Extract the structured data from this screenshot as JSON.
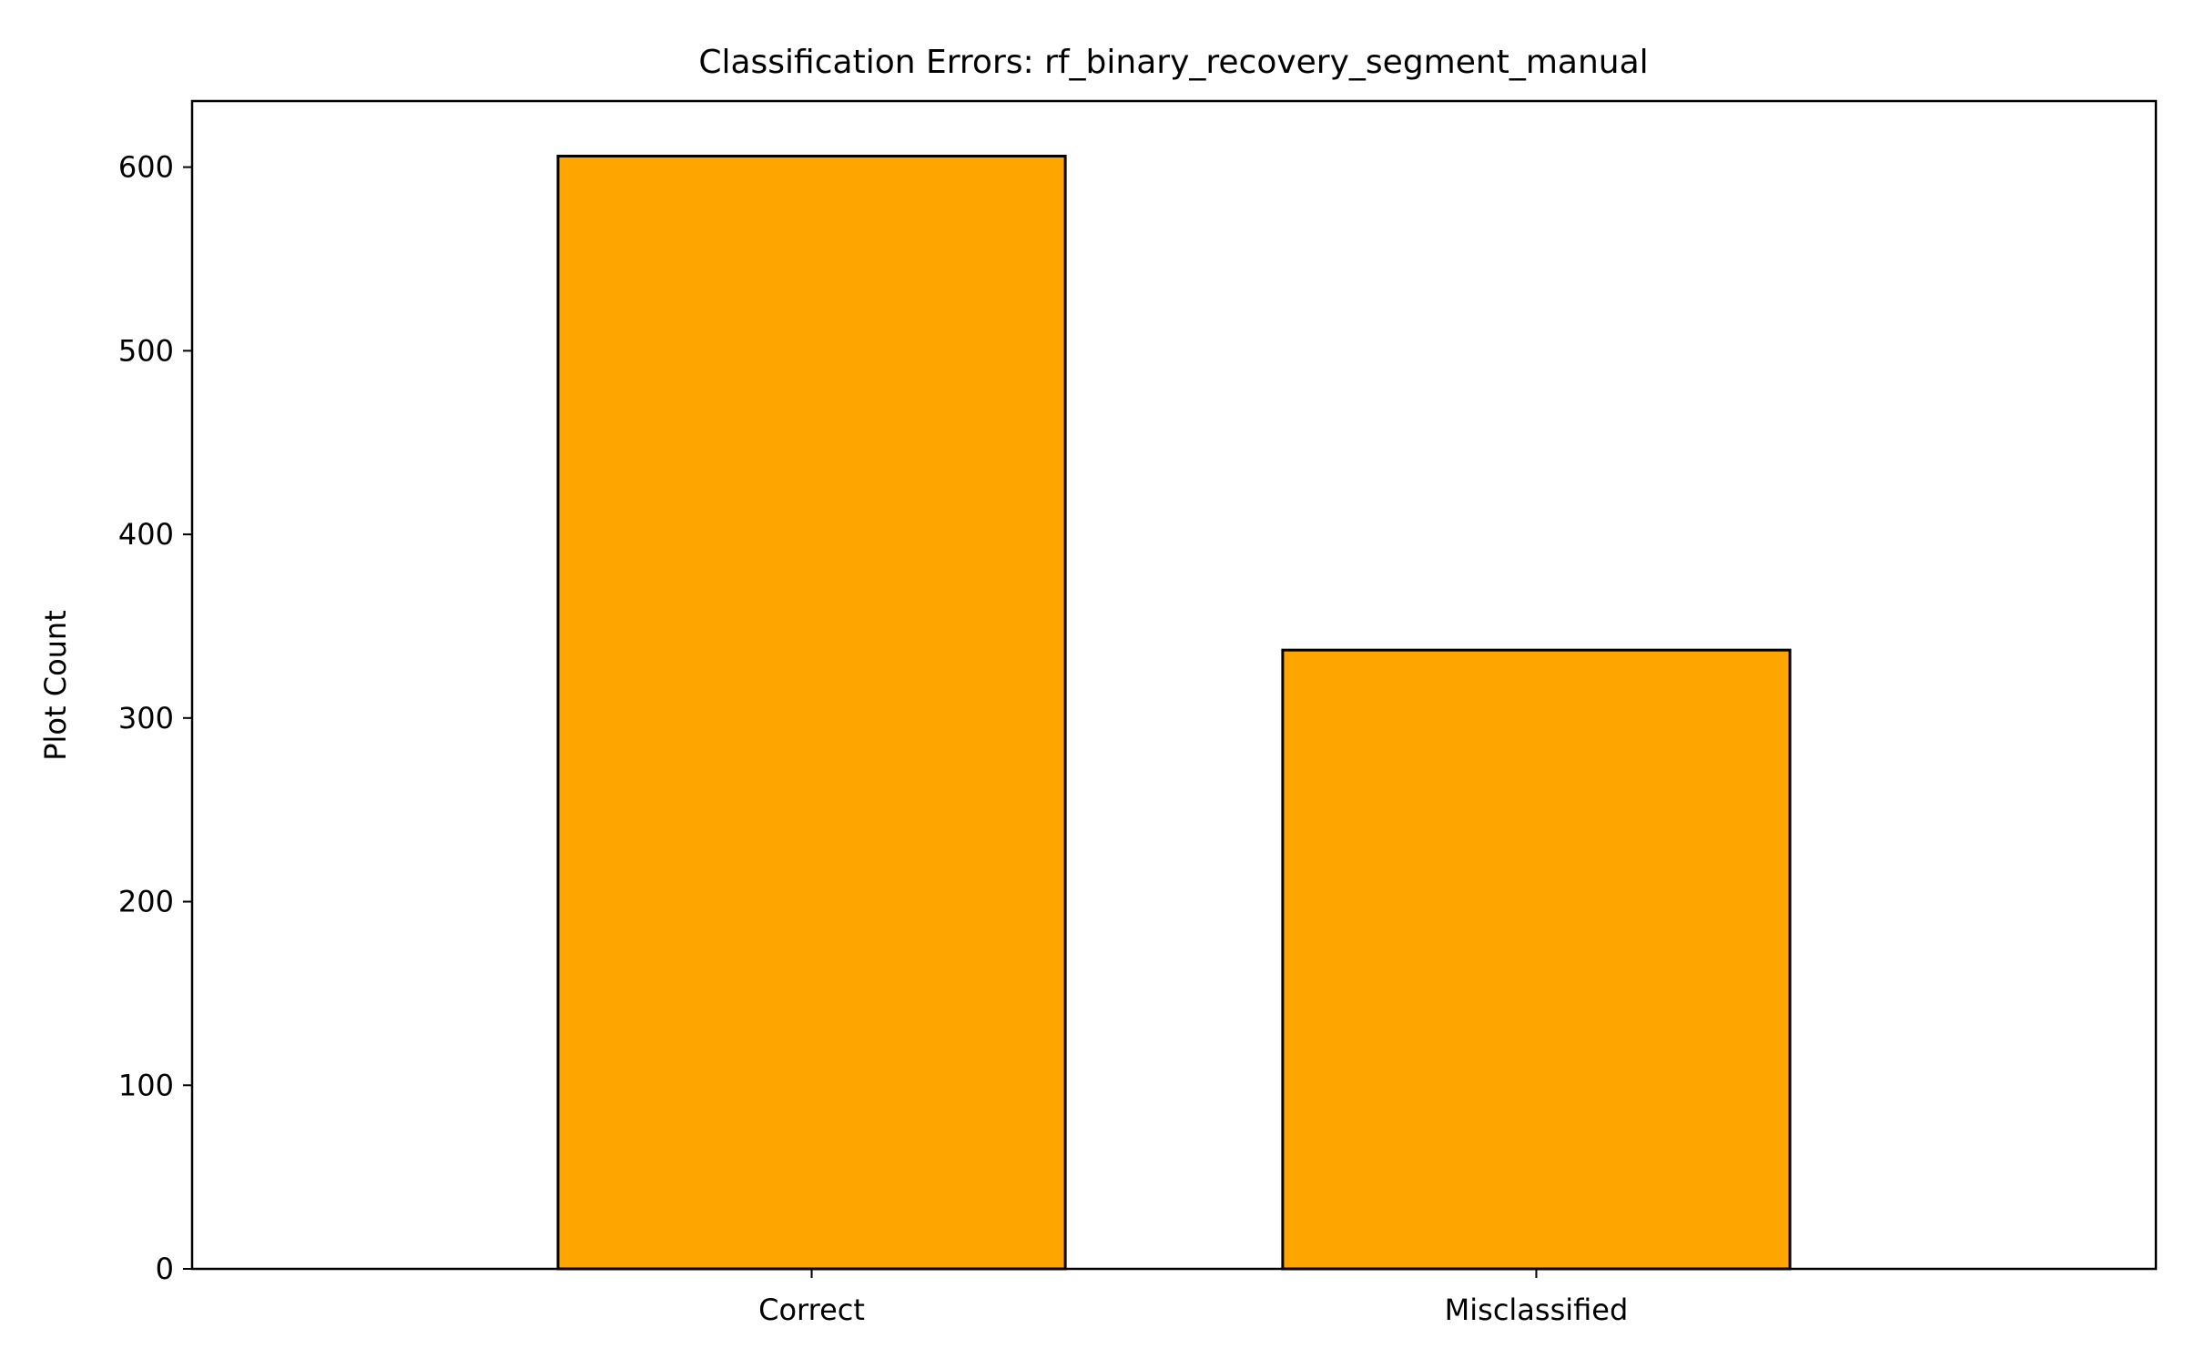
{
  "chart_data": {
    "type": "bar",
    "title": "Classification Errors: rf_binary_recovery_segment_manual",
    "xlabel": "",
    "ylabel": "Plot Count",
    "categories": [
      "Correct",
      "Misclassified"
    ],
    "values": [
      606,
      337
    ],
    "ylim": [
      0,
      636
    ],
    "yticks": [
      0,
      100,
      200,
      300,
      400,
      500,
      600
    ],
    "grid": false,
    "bar_color": "#FFA500",
    "edge_color": "#000000"
  }
}
